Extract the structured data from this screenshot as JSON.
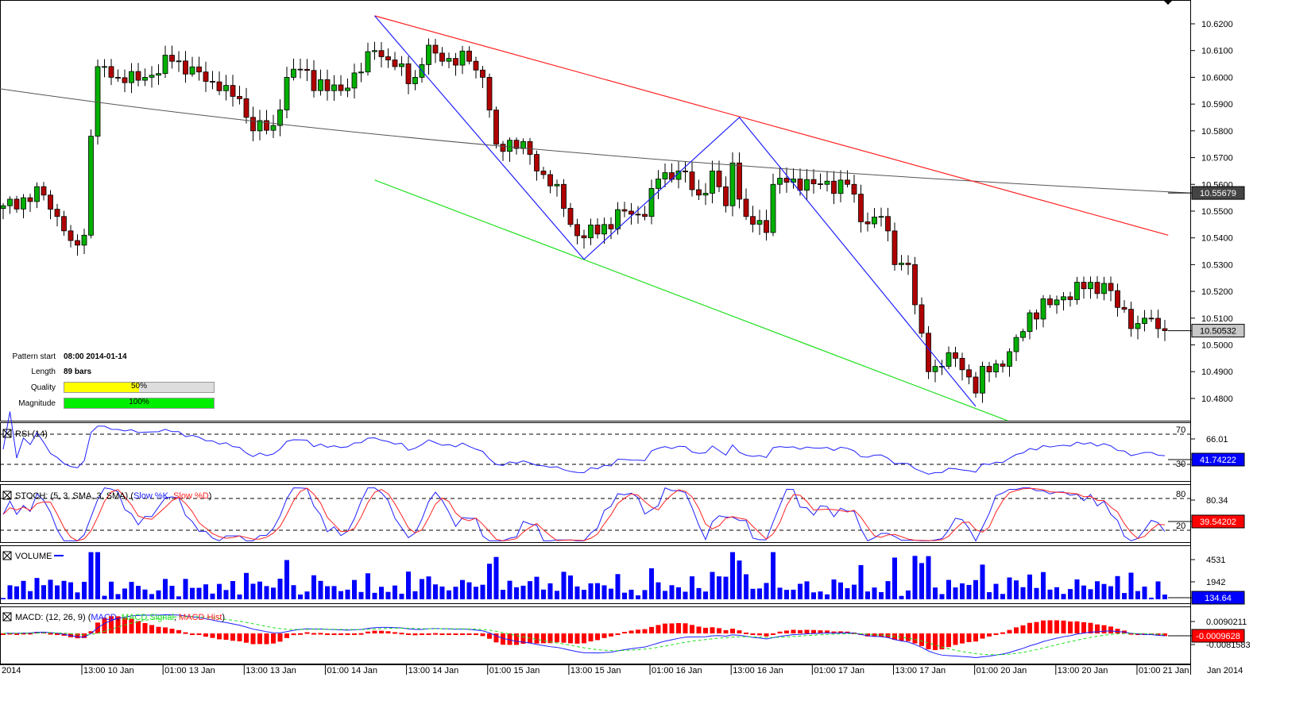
{
  "chart_data": {
    "type": "candlestick",
    "instrument_scale": {
      "ticks": [
        "10.6200",
        "10.6100",
        "10.6000",
        "10.5900",
        "10.5800",
        "10.5700",
        "10.5600",
        "10.5500",
        "10.5400",
        "10.5300",
        "10.5200",
        "10.5100",
        "10.5000",
        "10.4900",
        "10.4800"
      ],
      "range": [
        10.4725,
        10.6289
      ]
    },
    "price_waypoints": [
      [
        0,
        10.552
      ],
      [
        3,
        10.555
      ],
      [
        6,
        10.556
      ],
      [
        8,
        10.548
      ],
      [
        10,
        10.539
      ],
      [
        12,
        10.541
      ],
      [
        13,
        10.578
      ],
      [
        14,
        10.604
      ],
      [
        16,
        10.6
      ],
      [
        18,
        10.598
      ],
      [
        21,
        10.6
      ],
      [
        25,
        10.606
      ],
      [
        29,
        10.602
      ],
      [
        32,
        10.595
      ],
      [
        35,
        10.592
      ],
      [
        37,
        10.58
      ],
      [
        40,
        10.582
      ],
      [
        42,
        10.6
      ],
      [
        44,
        10.603
      ],
      [
        48,
        10.595
      ],
      [
        51,
        10.596
      ],
      [
        55,
        10.61
      ],
      [
        58,
        10.604
      ],
      [
        61,
        10.6
      ],
      [
        63,
        10.612
      ],
      [
        65,
        10.606
      ],
      [
        69,
        10.606
      ],
      [
        71,
        10.6
      ],
      [
        73,
        10.575
      ],
      [
        77,
        10.576
      ],
      [
        79,
        10.565
      ],
      [
        82,
        10.56
      ],
      [
        84,
        10.545
      ],
      [
        86,
        10.54
      ],
      [
        89,
        10.545
      ],
      [
        92,
        10.55
      ],
      [
        95,
        10.548
      ],
      [
        97,
        10.562
      ],
      [
        100,
        10.565
      ],
      [
        103,
        10.556
      ],
      [
        105,
        10.565
      ],
      [
        107,
        10.552
      ],
      [
        108,
        10.568
      ],
      [
        110,
        10.548
      ],
      [
        113,
        10.542
      ],
      [
        114,
        10.56
      ],
      [
        117,
        10.562
      ],
      [
        121,
        10.56
      ],
      [
        125,
        10.56
      ],
      [
        127,
        10.546
      ],
      [
        130,
        10.548
      ],
      [
        132,
        10.53
      ],
      [
        134,
        10.53
      ],
      [
        135,
        10.515
      ],
      [
        137,
        10.49
      ],
      [
        139,
        10.492
      ],
      [
        141,
        10.495
      ],
      [
        143,
        10.488
      ],
      [
        144,
        10.482
      ],
      [
        145,
        10.492
      ],
      [
        148,
        10.492
      ],
      [
        151,
        10.505
      ],
      [
        152,
        10.512
      ],
      [
        155,
        10.515
      ],
      [
        157,
        10.518
      ],
      [
        160,
        10.521
      ],
      [
        163,
        10.523
      ],
      [
        165,
        10.514
      ],
      [
        168,
        10.508
      ],
      [
        169,
        10.51
      ],
      [
        172,
        10.50532
      ]
    ],
    "moving_average": {
      "start": 10.5957,
      "end": 10.55679,
      "label": "10.55679"
    },
    "last_price_label": "10.50532",
    "resistance_line": [
      [
        55,
        10.623
      ],
      [
        172.5,
        10.541
      ]
    ],
    "support_line": [
      [
        55,
        10.5616
      ],
      [
        148.7,
        10.4717
      ]
    ],
    "zigzag": [
      [
        55,
        10.623
      ],
      [
        86,
        10.532
      ],
      [
        109,
        10.585
      ],
      [
        144,
        10.477
      ]
    ],
    "x_ticks": [
      "2014",
      "13:00 10 Jan",
      "01:00 13 Jan",
      "13:00 13 Jan",
      "01:00 14 Jan",
      "13:00 14 Jan",
      "01:00 15 Jan",
      "13:00 15 Jan",
      "01:00 16 Jan",
      "13:00 16 Jan",
      "01:00 17 Jan",
      "13:00 17 Jan",
      "01:00 20 Jan",
      "13:00 20 Jan",
      "01:00 21 Jan"
    ],
    "x_axis_right_label": "Jan 2014",
    "colors": {
      "up": "#00b000",
      "down": "#b00000",
      "resistance": "#ff2020",
      "support": "#20e020",
      "zigzag": "#2020ff",
      "ma": "#555555"
    }
  },
  "pattern": {
    "start_label": "Pattern start",
    "start_value": "08:00 2014-01-14",
    "length_label": "Length",
    "length_value": "89 bars",
    "quality_label": "Quality",
    "quality_value": "50%",
    "quality": 50,
    "magnitude_label": "Magnitude",
    "magnitude_value": "100%",
    "magnitude": 100
  },
  "indicators": {
    "rsi": {
      "title": "RSI (14)",
      "level_high": "70",
      "level_low": "30",
      "tick": "66.01",
      "value": "41.74222"
    },
    "stoch": {
      "title": "STOCH: (5, 3, SMA, 3, SMA) (",
      "k": "Slow %K",
      "d": "Slow %D",
      "level_high": "80",
      "level_low": "20",
      "tick": "80.34",
      "value": "39.54202"
    },
    "volume": {
      "title": "VOLUME",
      "tick_high": "4531",
      "tick_low": "1942",
      "value": "134.64"
    },
    "macd": {
      "title": "MACD: (12, 26, 9) (",
      "macd": "MACD",
      "signal": "MACD Signal",
      "hist": "MACD Hist",
      "tick_high": "0.0090211",
      "tick_low": "-0.0081583",
      "value": "-0.0009628"
    }
  }
}
